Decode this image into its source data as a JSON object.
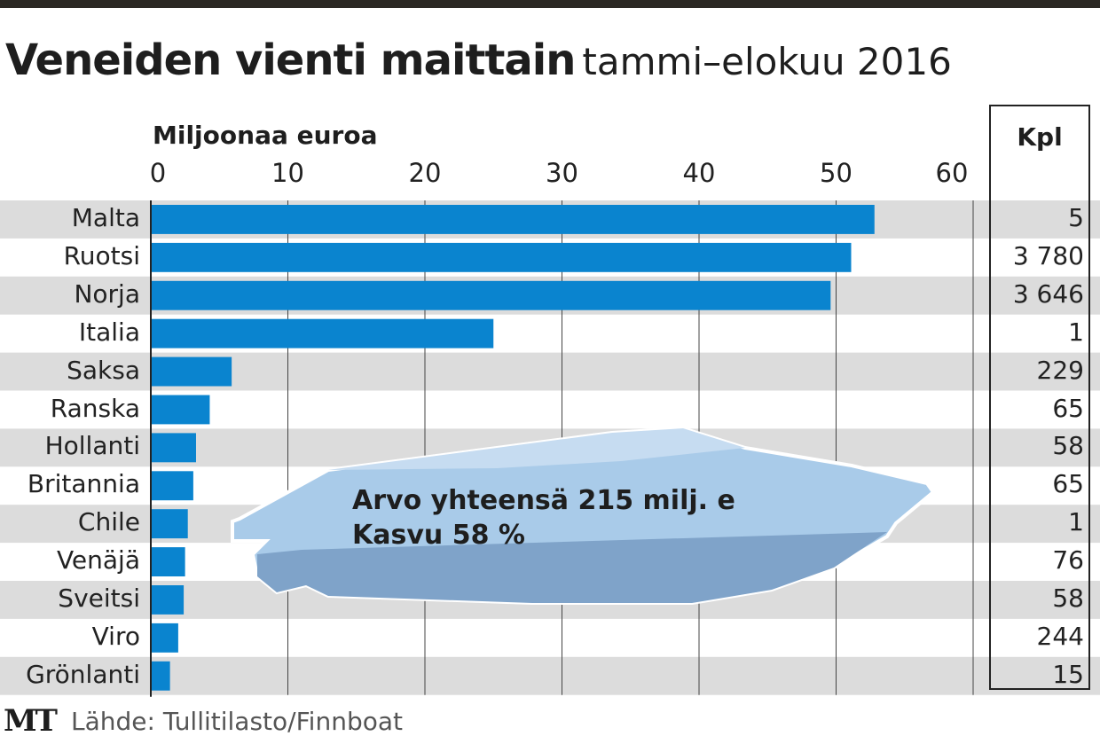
{
  "title": "Veneiden vienti maittain",
  "subtitle": "tammi–elokuu 2016",
  "chart_data": {
    "type": "bar",
    "orientation": "horizontal",
    "title": "Veneiden vienti maittain tammi–elokuu 2016",
    "xlabel": "Miljoonaa euroa",
    "xlim": [
      0,
      60
    ],
    "ticks": [
      "0",
      "10",
      "20",
      "30",
      "40",
      "50",
      "60"
    ],
    "categories": [
      "Malta",
      "Ruotsi",
      "Norja",
      "Italia",
      "Saksa",
      "Ranska",
      "Hollanti",
      "Britannia",
      "Chile",
      "Venäjä",
      "Sveitsi",
      "Viro",
      "Grönlanti"
    ],
    "values": [
      52.8,
      51.1,
      49.6,
      25.0,
      5.9,
      4.3,
      3.3,
      3.1,
      2.7,
      2.5,
      2.4,
      2.0,
      1.4
    ],
    "kpl_header": "Kpl",
    "kpl": [
      "5",
      "3 780",
      "3 646",
      "1",
      "229",
      "65",
      "58",
      "65",
      "1",
      "76",
      "58",
      "244",
      "15"
    ],
    "bar_color": "#0a84cf",
    "annotation": [
      "Arvo yhteensä 215 milj. e",
      "Kasvu 58 %"
    ]
  },
  "logo": "MT",
  "source": "Lähde: Tullitilasto/Finnboat"
}
